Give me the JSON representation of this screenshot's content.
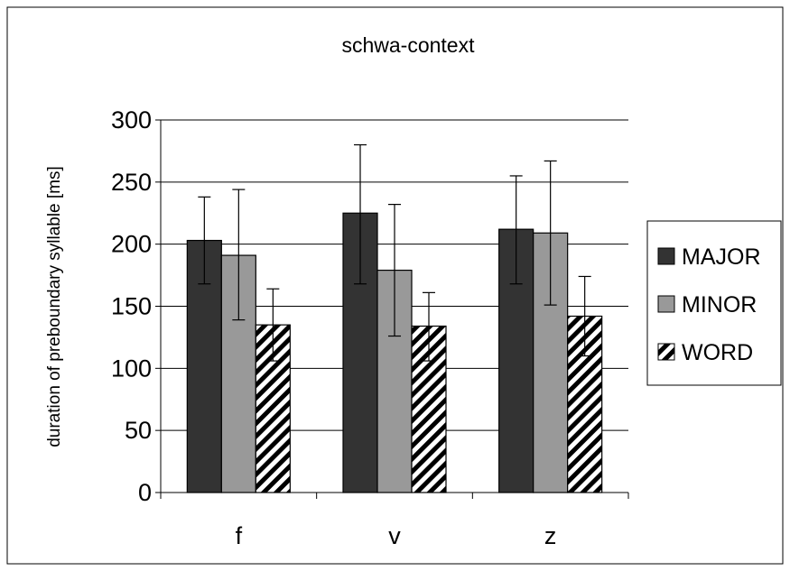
{
  "chart_data": {
    "type": "bar",
    "title": "schwa-context",
    "xlabel": "",
    "ylabel": "duration of preboundary syllable [ms]",
    "categories": [
      "f",
      "v",
      "z"
    ],
    "ylim": [
      0,
      300
    ],
    "yticks": [
      0,
      50,
      100,
      150,
      200,
      250,
      300
    ],
    "grid": true,
    "legend_position": "right",
    "series": [
      {
        "name": "MAJOR",
        "values": [
          203,
          225,
          212
        ],
        "error_low": [
          168,
          168,
          168
        ],
        "error_high": [
          238,
          280,
          255
        ],
        "color": "#333333",
        "pattern": "solid"
      },
      {
        "name": "MINOR",
        "values": [
          191,
          179,
          209
        ],
        "error_low": [
          139,
          126,
          151
        ],
        "error_high": [
          244,
          232,
          267
        ],
        "color": "#999999",
        "pattern": "solid"
      },
      {
        "name": "WORD",
        "values": [
          135,
          134,
          142
        ],
        "error_low": [
          106,
          106,
          110
        ],
        "error_high": [
          164,
          161,
          174
        ],
        "color": "#ffffff",
        "pattern": "diagonal-hatch"
      }
    ]
  }
}
